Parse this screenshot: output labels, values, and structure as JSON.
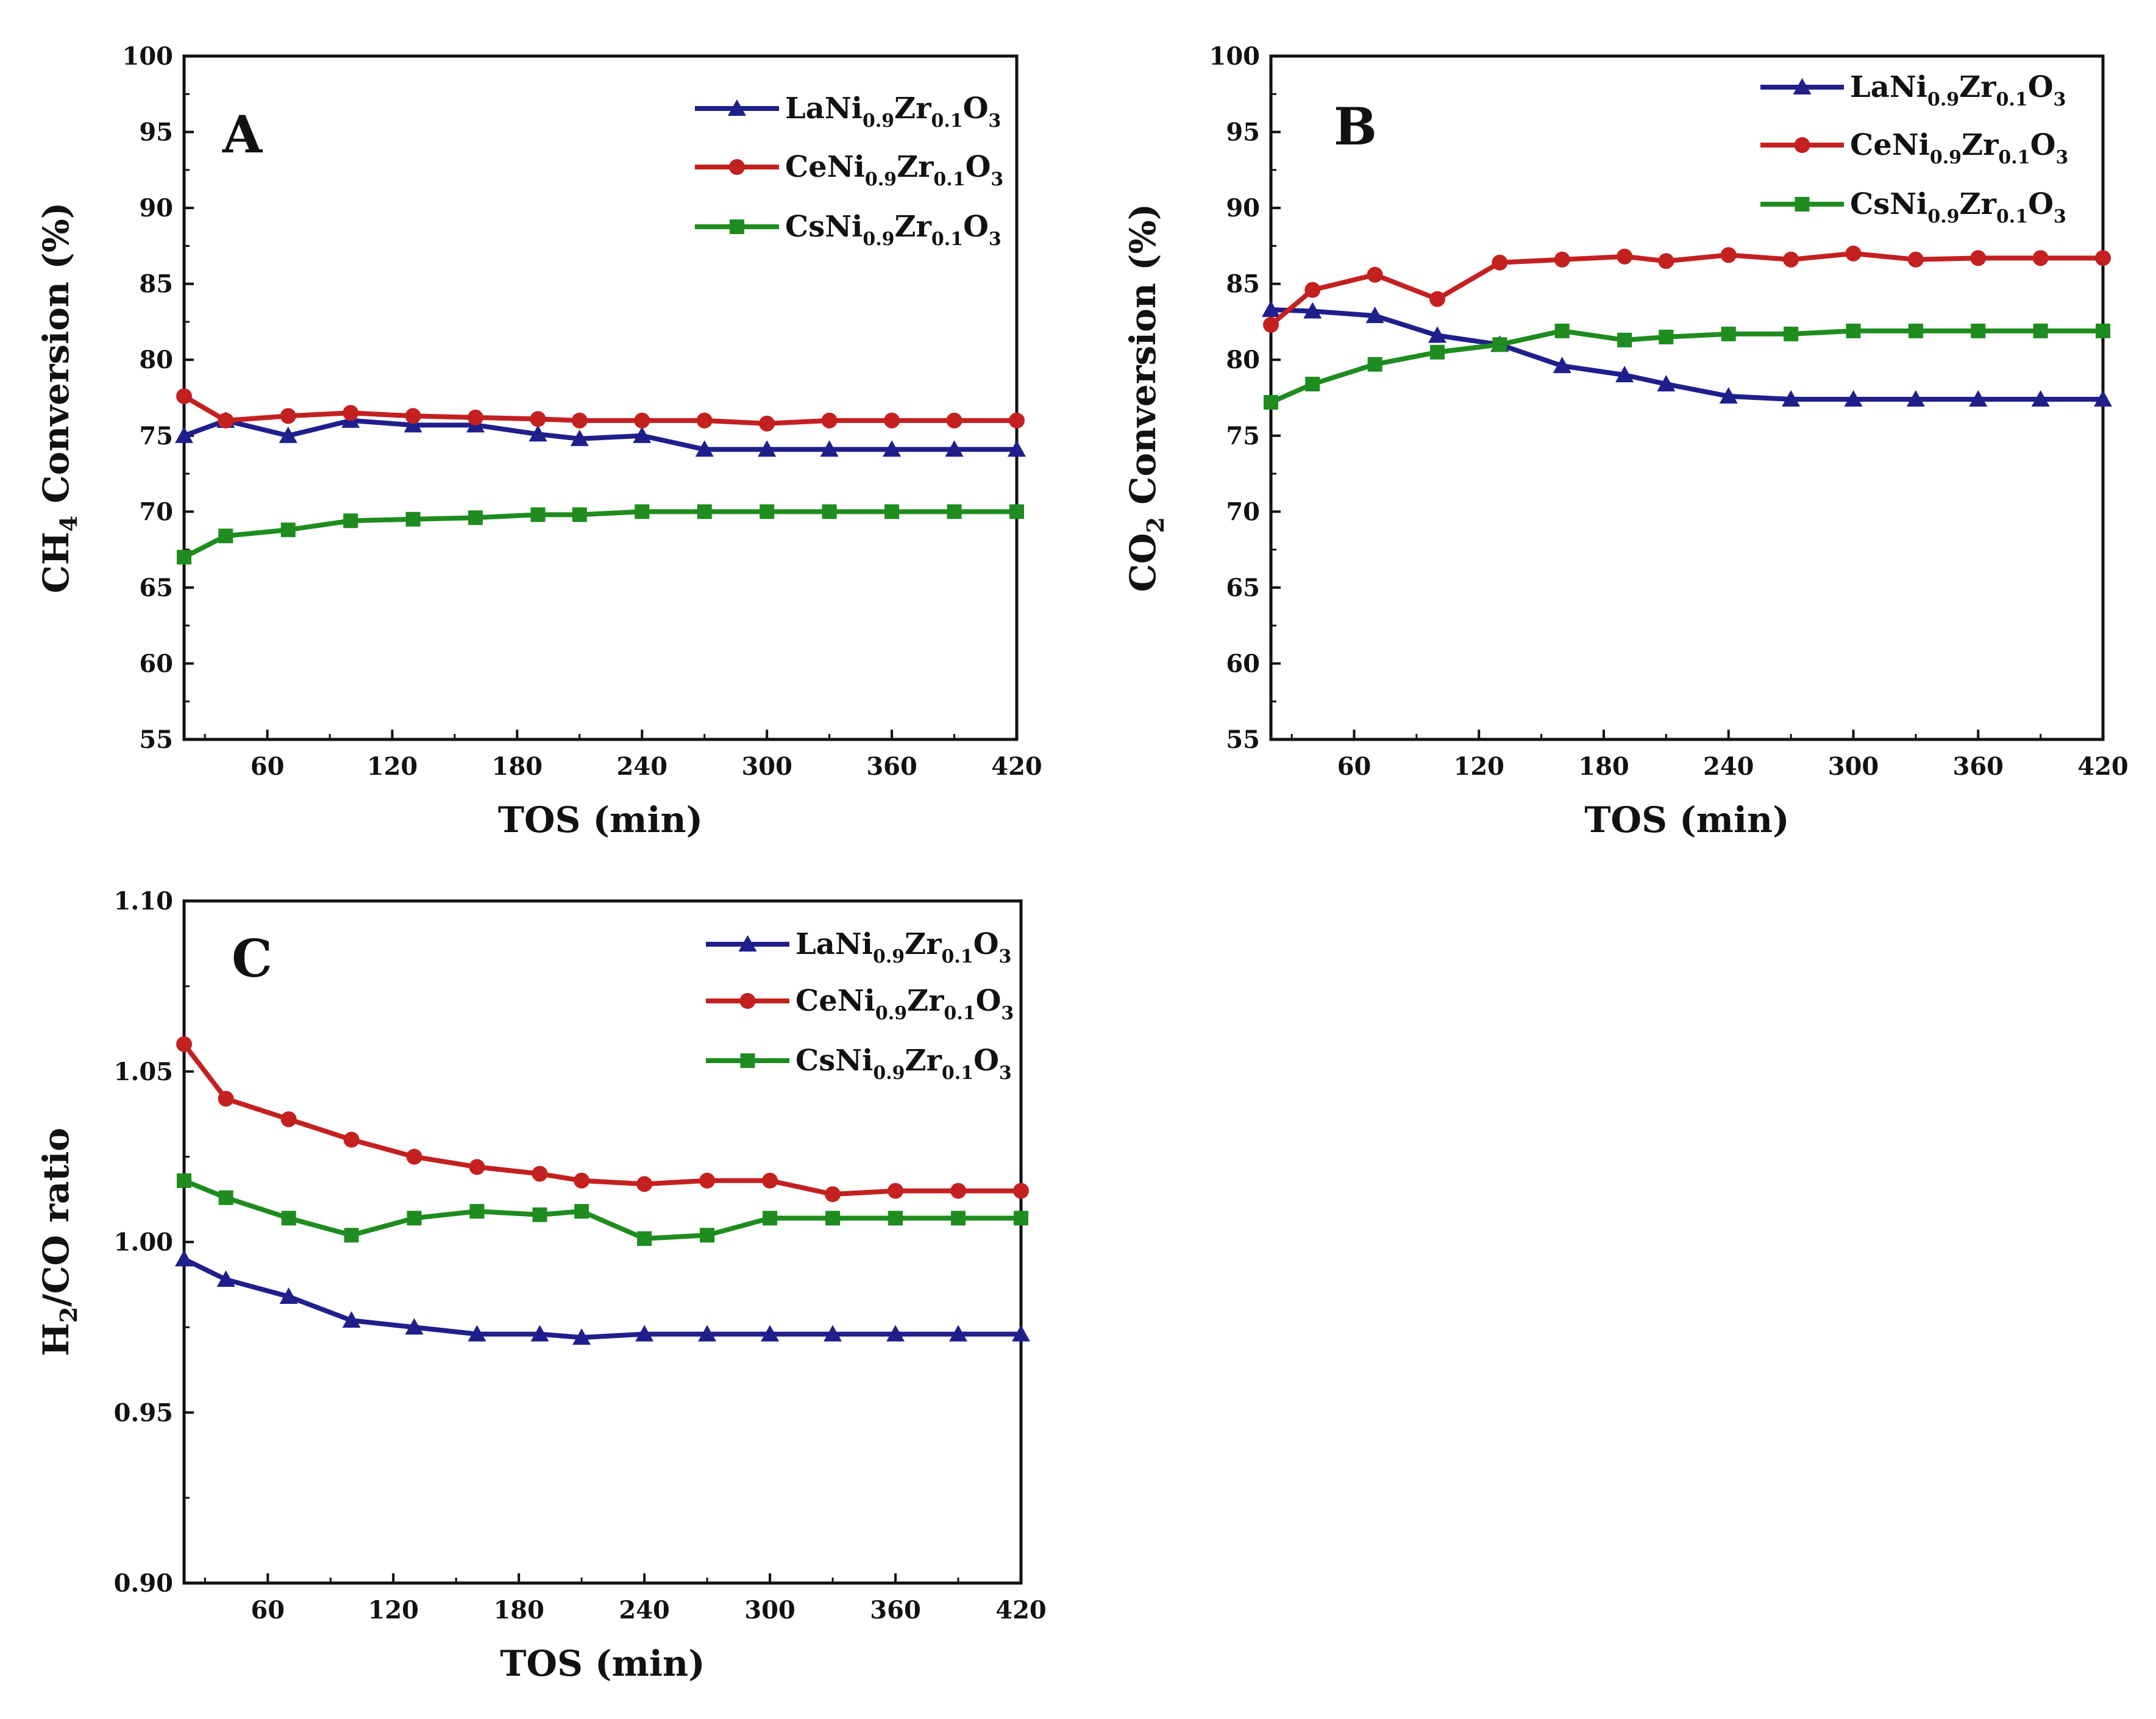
{
  "figure_title": "",
  "series_names": [
    "LaNi0.9Zr0.1O3",
    "CeNi0.9Zr0.1O3",
    "CsNi0.9Zr0.1O3"
  ],
  "series_colors": {
    "La": "#1f1f8c",
    "Ce": "#c42020",
    "Cs": "#1e8c1e"
  },
  "chart_data": [
    {
      "type": "line",
      "panel": "A",
      "title": "",
      "xlabel": "TOS (min)",
      "ylabel": "CH4 Conversion (%)",
      "ylabel_main": "CH",
      "ylabel_sub": "4",
      "ylabel_rest": " Conversion (%)",
      "xlim": [
        20,
        420
      ],
      "ylim": [
        55,
        100
      ],
      "xticks": [
        60,
        120,
        180,
        240,
        300,
        360,
        420
      ],
      "yticks": [
        55,
        60,
        65,
        70,
        75,
        80,
        85,
        90,
        95,
        100
      ],
      "x": [
        20,
        40,
        70,
        100,
        130,
        160,
        190,
        210,
        240,
        270,
        300,
        330,
        360,
        390,
        420
      ],
      "series": [
        {
          "name": "LaNi0.9Zr0.1O3",
          "color": "#1f1f8c",
          "marker": "triangle",
          "values": [
            75.0,
            76.0,
            75.0,
            76.0,
            75.7,
            75.7,
            75.1,
            74.8,
            75.0,
            74.1,
            74.1,
            74.1,
            74.1,
            74.1,
            74.1
          ]
        },
        {
          "name": "CeNi0.9Zr0.1O3",
          "color": "#c42020",
          "marker": "circle",
          "values": [
            77.6,
            76.0,
            76.3,
            76.5,
            76.3,
            76.2,
            76.1,
            76.0,
            76.0,
            76.0,
            75.8,
            76.0,
            76.0,
            76.0,
            76.0
          ]
        },
        {
          "name": "CsNi0.9Zr0.1O3",
          "color": "#1e8c1e",
          "marker": "square",
          "values": [
            67.0,
            68.4,
            68.8,
            69.4,
            69.5,
            69.6,
            69.8,
            69.8,
            70.0,
            70.0,
            70.0,
            70.0,
            70.0,
            70.0,
            70.0
          ]
        }
      ]
    },
    {
      "type": "line",
      "panel": "B",
      "title": "",
      "xlabel": "TOS (min)",
      "ylabel": "CO2 Conversion (%)",
      "ylabel_main": "CO",
      "ylabel_sub": "2",
      "ylabel_rest": " Conversion (%)",
      "xlim": [
        20,
        420
      ],
      "ylim": [
        55,
        100
      ],
      "xticks": [
        60,
        120,
        180,
        240,
        300,
        360,
        420
      ],
      "yticks": [
        55,
        60,
        65,
        70,
        75,
        80,
        85,
        90,
        95,
        100
      ],
      "x": [
        20,
        40,
        70,
        100,
        130,
        160,
        190,
        210,
        240,
        270,
        300,
        330,
        360,
        390,
        420
      ],
      "series": [
        {
          "name": "LaNi0.9Zr0.1O3",
          "color": "#1f1f8c",
          "marker": "triangle",
          "values": [
            83.3,
            83.2,
            82.9,
            81.6,
            81.0,
            79.6,
            79.0,
            78.4,
            77.6,
            77.4,
            77.4,
            77.4,
            77.4,
            77.4,
            77.4
          ]
        },
        {
          "name": "CeNi0.9Zr0.1O3",
          "color": "#c42020",
          "marker": "circle",
          "values": [
            82.3,
            84.6,
            85.6,
            84.0,
            86.4,
            86.6,
            86.8,
            86.5,
            86.9,
            86.6,
            87.0,
            86.6,
            86.7,
            86.7,
            86.7
          ]
        },
        {
          "name": "CsNi0.9Zr0.1O3",
          "color": "#1e8c1e",
          "marker": "square",
          "values": [
            77.2,
            78.4,
            79.7,
            80.5,
            81.0,
            81.9,
            81.3,
            81.5,
            81.7,
            81.7,
            81.9,
            81.9,
            81.9,
            81.9,
            81.9
          ]
        }
      ]
    },
    {
      "type": "line",
      "panel": "C",
      "title": "",
      "xlabel": "TOS (min)",
      "ylabel": "H2/CO ratio",
      "ylabel_main": "H",
      "ylabel_sub": "2",
      "ylabel_rest": "/CO ratio",
      "xlim": [
        20,
        420
      ],
      "ylim": [
        0.9,
        1.1
      ],
      "xticks": [
        60,
        120,
        180,
        240,
        300,
        360,
        420
      ],
      "yticks": [
        0.9,
        0.95,
        1.0,
        1.05,
        1.1
      ],
      "ytick_labels": [
        "0.90",
        "0.95",
        "1.00",
        "1.05",
        "1.10"
      ],
      "x": [
        20,
        40,
        70,
        100,
        130,
        160,
        190,
        210,
        240,
        270,
        300,
        330,
        360,
        390,
        420
      ],
      "series": [
        {
          "name": "LaNi0.9Zr0.1O3",
          "color": "#1f1f8c",
          "marker": "triangle",
          "values": [
            0.995,
            0.989,
            0.984,
            0.977,
            0.975,
            0.973,
            0.973,
            0.972,
            0.973,
            0.973,
            0.973,
            0.973,
            0.973,
            0.973,
            0.973
          ]
        },
        {
          "name": "CeNi0.9Zr0.1O3",
          "color": "#c42020",
          "marker": "circle",
          "values": [
            1.058,
            1.042,
            1.036,
            1.03,
            1.025,
            1.022,
            1.02,
            1.018,
            1.017,
            1.018,
            1.018,
            1.014,
            1.015,
            1.015,
            1.015
          ]
        },
        {
          "name": "CsNi0.9Zr0.1O3",
          "color": "#1e8c1e",
          "marker": "square",
          "values": [
            1.018,
            1.013,
            1.007,
            1.002,
            1.007,
            1.009,
            1.008,
            1.009,
            1.001,
            1.002,
            1.007,
            1.007,
            1.007,
            1.007,
            1.007
          ]
        }
      ]
    }
  ]
}
